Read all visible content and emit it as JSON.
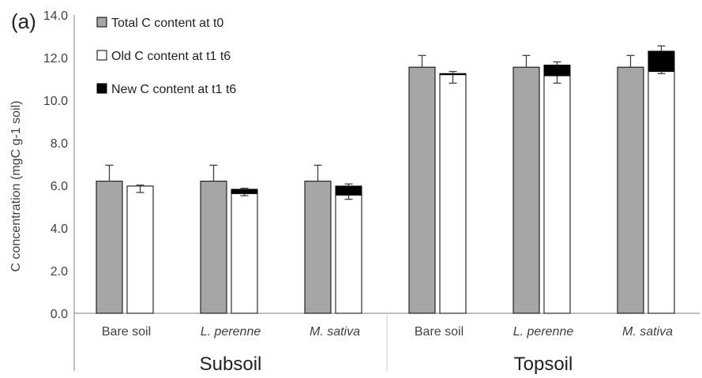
{
  "chart_data": {
    "type": "bar",
    "panel_label": "(a)",
    "ylabel": "C concentration  (mgC g-1 soil)",
    "ylim": [
      0,
      14
    ],
    "yticks": [
      "0.0",
      "2.0",
      "4.0",
      "6.0",
      "8.0",
      "10.0",
      "12.0",
      "14.0"
    ],
    "groups": [
      {
        "name": "Subsoil",
        "categories": [
          "Bare soil",
          "L. perenne",
          "M. sativa"
        ]
      },
      {
        "name": "Topsoil",
        "categories": [
          "Bare soil",
          "L. perenne",
          "M. sativa"
        ]
      }
    ],
    "categories": [
      "Bare soil",
      "L. perenne",
      "M. sativa",
      "Bare soil",
      "L. perenne",
      "M. sativa"
    ],
    "italic_categories": [
      false,
      true,
      true,
      false,
      true,
      true
    ],
    "series": [
      {
        "name": "Total C content at t0",
        "color": "#a6a6a6",
        "values": [
          6.2,
          6.2,
          6.2,
          11.55,
          11.55,
          11.55
        ],
        "error": [
          0.75,
          0.75,
          0.75,
          0.55,
          0.55,
          0.55
        ]
      },
      {
        "name": "Old C content  at t1 t6",
        "color": "#ffffff",
        "values": [
          5.97,
          5.62,
          5.55,
          11.2,
          11.15,
          11.35
        ],
        "error": [
          0.3,
          0.1,
          0.2,
          0.4,
          0.35,
          0.1
        ]
      },
      {
        "name": "New C content at t1 t6",
        "color": "#000000",
        "values": [
          0.0,
          0.2,
          0.42,
          0.05,
          0.5,
          0.95
        ],
        "error": [
          0.05,
          0.05,
          0.1,
          0.1,
          0.15,
          0.25
        ]
      }
    ],
    "legend_position": "top-left",
    "grid": false
  }
}
